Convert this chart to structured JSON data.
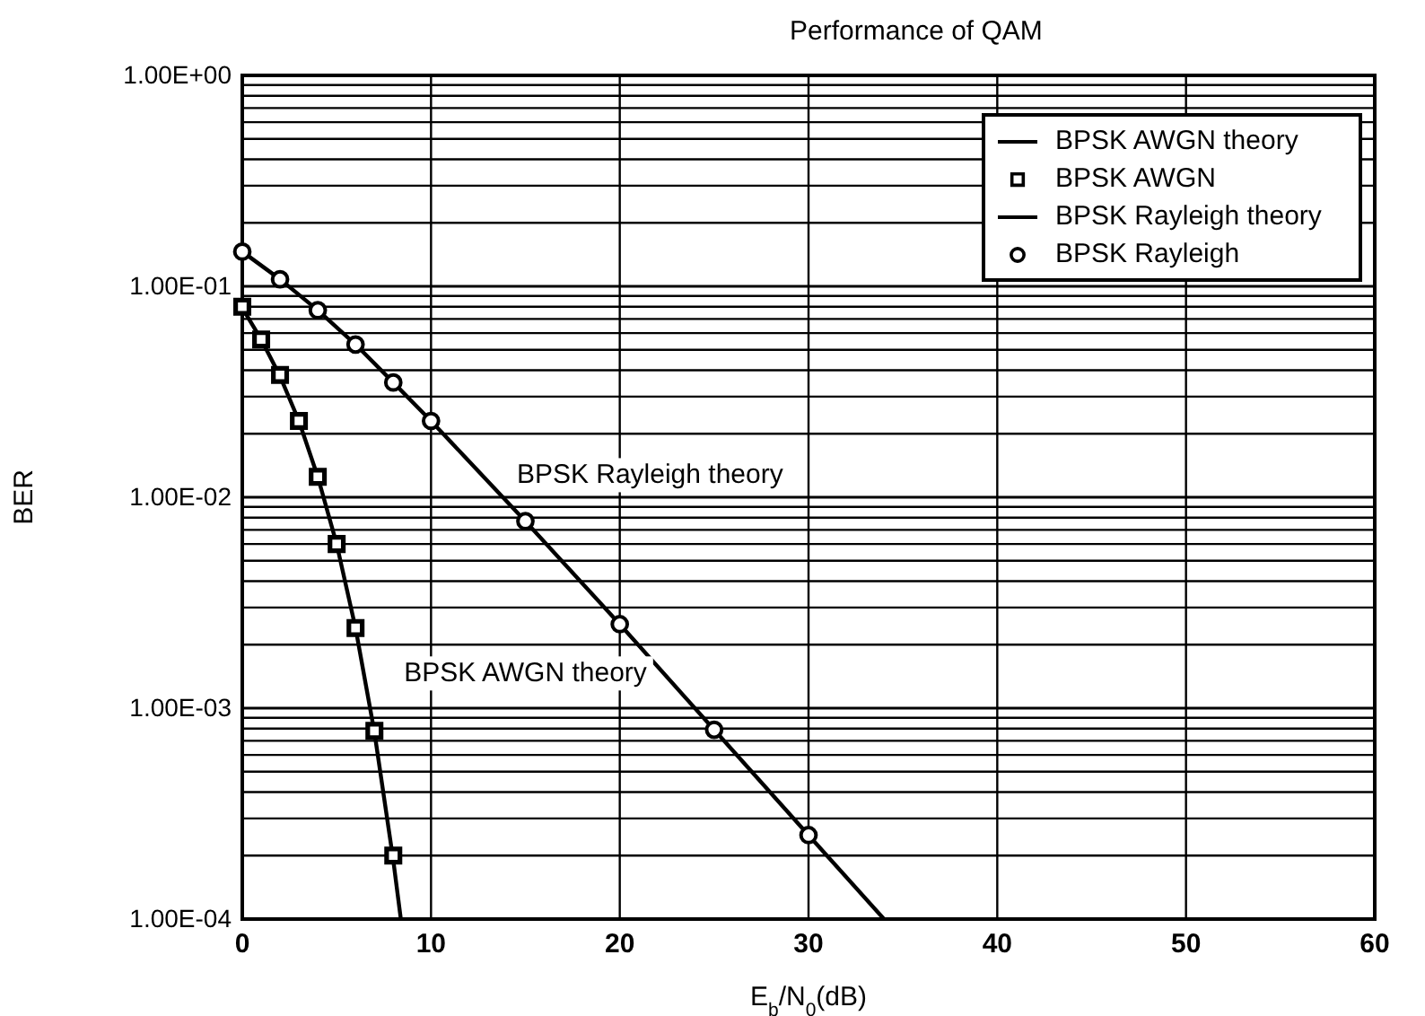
{
  "chart_data": {
    "type": "line",
    "title": "Performance of QAM",
    "xlabel": "E$_{b}$/N$_{0}$(dB)",
    "ylabel": "BER",
    "log": "y",
    "grid": true,
    "legend": "top right",
    "xlim": [
      0,
      60
    ],
    "xticks": [
      0,
      10,
      20,
      30,
      40,
      50,
      60
    ],
    "ylim": [
      0.0001,
      1
    ],
    "yticks": [
      {
        "value": 1,
        "label": "1.00E+00"
      },
      {
        "value": 0.1,
        "label": "1.00E-01"
      },
      {
        "value": 0.01,
        "label": "1.00E-02"
      },
      {
        "value": 0.001,
        "label": "1.00E-03"
      },
      {
        "value": 0.0001,
        "label": "1.00E-04"
      }
    ],
    "series": [
      {
        "name": "BPSK AWGN theory",
        "type": "line",
        "marker": "none",
        "color": "#000000",
        "x": [
          0,
          1,
          2,
          3,
          4,
          5,
          6,
          7,
          8,
          8.4
        ],
        "values": [
          0.079,
          0.056,
          0.0375,
          0.023,
          0.0125,
          0.006,
          0.0024,
          0.00077,
          0.00019,
          0.0001
        ]
      },
      {
        "name": "BPSK AWGN",
        "type": "scatter",
        "marker": "square",
        "color": "#000000",
        "x": [
          0,
          1,
          2,
          3,
          4,
          5,
          6,
          7,
          8
        ],
        "values": [
          0.08,
          0.056,
          0.038,
          0.023,
          0.0125,
          0.006,
          0.0024,
          0.00078,
          0.0002
        ]
      },
      {
        "name": "BPSK Rayleigh theory",
        "type": "line",
        "marker": "none",
        "color": "#000000",
        "x": [
          0,
          2,
          4,
          6,
          8,
          10,
          15,
          20,
          25,
          30,
          34
        ],
        "values": [
          0.146,
          0.108,
          0.077,
          0.053,
          0.035,
          0.023,
          0.0077,
          0.0025,
          0.00079,
          0.00025,
          0.0001
        ]
      },
      {
        "name": "BPSK Rayleigh",
        "type": "scatter",
        "marker": "circle",
        "color": "#000000",
        "x": [
          0,
          2,
          4,
          6,
          8,
          10,
          15,
          20,
          25,
          30
        ],
        "values": [
          0.146,
          0.108,
          0.077,
          0.053,
          0.035,
          0.023,
          0.0077,
          0.0025,
          0.00079,
          0.00025
        ]
      }
    ],
    "annotations": [
      "BPSK Rayleigh theory",
      "BPSK AWGN theory"
    ]
  }
}
